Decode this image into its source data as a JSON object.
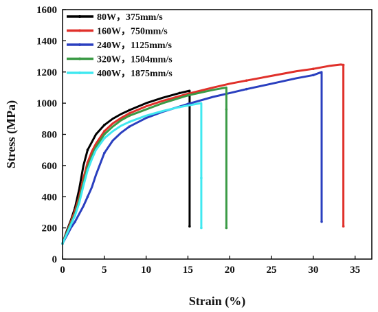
{
  "chart_data": {
    "type": "line",
    "xlabel": "Strain (%)",
    "ylabel": "Stress (MPa)",
    "xlim": [
      0,
      37
    ],
    "ylim": [
      0,
      1600
    ],
    "xticks": [
      0,
      5,
      10,
      15,
      20,
      25,
      30,
      35
    ],
    "yticks": [
      0,
      200,
      400,
      600,
      800,
      1000,
      1200,
      1400,
      1600
    ],
    "legend_position": "top-left",
    "grid": false,
    "series": [
      {
        "name": "80W，375mm/s",
        "color": "#000000",
        "x": [
          0,
          0.5,
          1,
          1.5,
          2,
          2.5,
          3,
          3.5,
          4,
          5,
          6,
          7,
          8,
          10,
          12,
          14,
          15.2,
          15.2,
          15.2
        ],
        "y": [
          100,
          180,
          250,
          330,
          450,
          600,
          700,
          750,
          800,
          860,
          900,
          930,
          955,
          1000,
          1035,
          1065,
          1080,
          560,
          210
        ]
      },
      {
        "name": "160W，750mm/s",
        "color": "#e0302a",
        "x": [
          0,
          0.5,
          1,
          1.5,
          2,
          2.5,
          3,
          3.5,
          4,
          5,
          6,
          7,
          8,
          10,
          12,
          15,
          18,
          20,
          22,
          25,
          28,
          30,
          32,
          33.3,
          33.6,
          33.6,
          33.6,
          33.6
        ],
        "y": [
          100,
          170,
          240,
          310,
          400,
          520,
          620,
          690,
          740,
          820,
          870,
          905,
          935,
          980,
          1015,
          1060,
          1100,
          1125,
          1145,
          1175,
          1205,
          1220,
          1240,
          1248,
          1245,
          1020,
          360,
          210
        ]
      },
      {
        "name": "240W，1125mm/s",
        "color": "#2a3fbf",
        "x": [
          0,
          0.5,
          1,
          1.5,
          2,
          2.5,
          3,
          3.5,
          4,
          5,
          6,
          7,
          8,
          10,
          12,
          15,
          18,
          20,
          22,
          25,
          28,
          30,
          31,
          31,
          31
        ],
        "y": [
          100,
          150,
          200,
          240,
          290,
          340,
          400,
          460,
          540,
          680,
          760,
          810,
          850,
          905,
          945,
          995,
          1040,
          1065,
          1090,
          1125,
          1160,
          1180,
          1200,
          760,
          240
        ]
      },
      {
        "name": "320W，1504mm/s",
        "color": "#3a9a45",
        "x": [
          0,
          0.5,
          1,
          1.5,
          2,
          2.5,
          3,
          3.5,
          4,
          5,
          6,
          7,
          8,
          10,
          12,
          15,
          18,
          19.6,
          19.6,
          19.6,
          19.6
        ],
        "y": [
          100,
          165,
          230,
          290,
          380,
          490,
          590,
          660,
          720,
          800,
          850,
          890,
          920,
          960,
          1000,
          1050,
          1085,
          1100,
          960,
          380,
          200
        ]
      },
      {
        "name": "400W，1875mm/s",
        "color": "#40e8f0",
        "x": [
          0,
          0.5,
          1,
          1.5,
          2,
          2.5,
          3,
          3.5,
          4,
          5,
          6,
          7,
          8,
          10,
          12,
          14,
          16,
          16.6,
          16.6,
          16.6
        ],
        "y": [
          100,
          160,
          220,
          280,
          360,
          470,
          570,
          640,
          700,
          775,
          820,
          855,
          880,
          920,
          950,
          975,
          995,
          1000,
          520,
          200
        ]
      }
    ]
  }
}
